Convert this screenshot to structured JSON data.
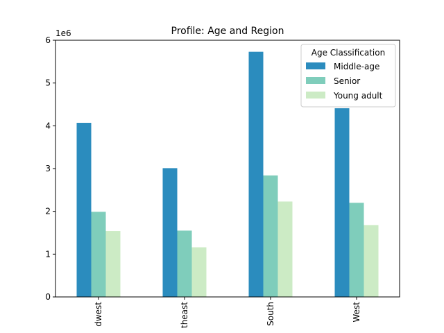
{
  "chart_data": {
    "type": "bar",
    "title": "Profile: Age and Region",
    "xlabel": "",
    "ylabel": "",
    "y_offset_label": "1e6",
    "categories": [
      "Midwest",
      "Northeast",
      "South",
      "West"
    ],
    "visible_category_labels": [
      "dwest",
      "theast",
      "South",
      "West"
    ],
    "yticks": [
      0,
      1,
      2,
      3,
      4,
      5,
      6
    ],
    "ylim": [
      0,
      6000000
    ],
    "legend": {
      "title": "Age Classification",
      "placement": "top-right"
    },
    "series": [
      {
        "name": "Middle-age",
        "color": "#2b8cbe",
        "values": [
          4070000,
          3010000,
          5730000,
          4410000
        ]
      },
      {
        "name": "Senior",
        "color": "#7fcdbb",
        "values": [
          1990000,
          1550000,
          2840000,
          2200000
        ]
      },
      {
        "name": "Young adult",
        "color": "#ccebc5",
        "values": [
          1540000,
          1160000,
          2230000,
          1680000
        ]
      }
    ],
    "grid": false
  }
}
